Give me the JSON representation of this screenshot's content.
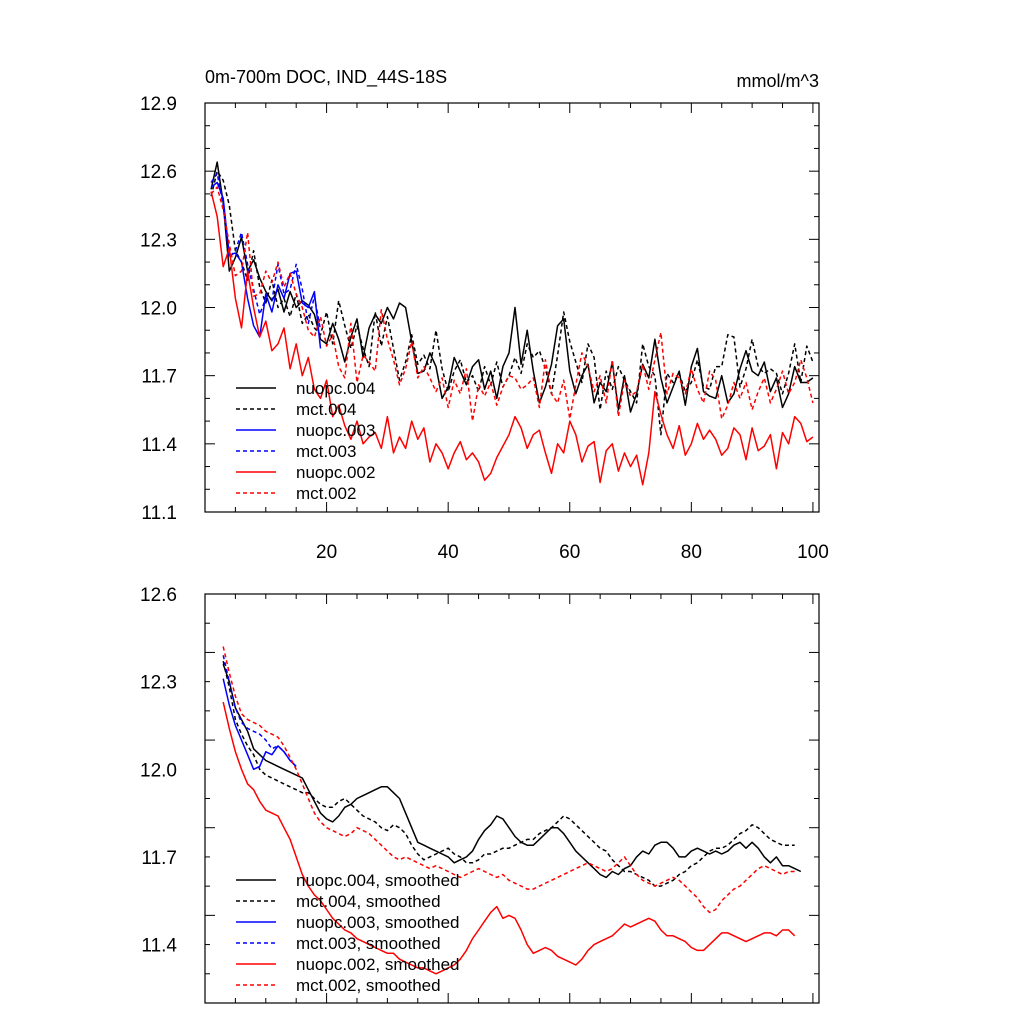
{
  "chart_data": [
    {
      "type": "line",
      "title": "0m-700m DOC, IND_44S-18S",
      "units": "mmol/m^3",
      "xlim": [
        0,
        101
      ],
      "ylim": [
        11.1,
        12.9
      ],
      "x_ticks": [
        "20",
        "40",
        "60",
        "80",
        "100"
      ],
      "y_ticks": [
        "11.1",
        "11.4",
        "11.7",
        "12.0",
        "12.3",
        "12.6",
        "12.9"
      ],
      "legend_position": "bottom-left",
      "series": [
        {
          "name": "nuopc.004",
          "color": "#000000",
          "dash": "solid",
          "x_start": 1,
          "values": [
            12.52,
            12.64,
            12.46,
            12.16,
            12.22,
            12.31,
            12.16,
            12.21,
            12.13,
            12.07,
            12.03,
            12.08,
            11.98,
            12.07,
            12.0,
            12.03,
            12.01,
            11.97,
            11.86,
            11.84,
            11.93,
            11.86,
            11.76,
            11.87,
            11.95,
            11.78,
            11.91,
            11.97,
            11.93,
            12.0,
            11.95,
            12.02,
            12.0,
            11.85,
            11.71,
            11.72,
            11.8,
            11.74,
            11.6,
            11.65,
            11.78,
            11.72,
            11.66,
            11.74,
            11.77,
            11.64,
            11.72,
            11.6,
            11.74,
            11.8,
            12.0,
            11.75,
            11.9,
            11.72,
            11.58,
            11.65,
            11.75,
            11.92,
            11.95,
            11.72,
            11.62,
            11.7,
            11.75,
            11.58,
            11.67,
            11.63,
            11.76,
            11.55,
            11.7,
            11.54,
            11.62,
            11.75,
            11.69,
            11.86,
            11.69,
            11.58,
            11.65,
            11.72,
            11.57,
            11.74,
            11.82,
            11.63,
            11.61,
            11.6,
            11.7,
            11.58,
            11.62,
            11.73,
            11.81,
            11.72,
            11.7,
            11.76,
            11.63,
            11.69,
            11.56,
            11.62,
            11.74,
            11.67,
            11.67,
            11.69
          ]
        },
        {
          "name": "mct.004",
          "color": "#000000",
          "dash": "dashed",
          "x_start": 1,
          "values": [
            12.49,
            12.6,
            12.56,
            12.45,
            12.25,
            12.2,
            12.12,
            12.25,
            12.09,
            12.02,
            12.12,
            12.0,
            12.04,
            11.96,
            12.06,
            11.93,
            11.97,
            11.91,
            11.88,
            11.98,
            11.84,
            12.03,
            11.92,
            11.82,
            11.92,
            11.82,
            11.74,
            11.98,
            11.83,
            11.96,
            11.82,
            11.68,
            11.76,
            11.88,
            11.75,
            11.79,
            11.73,
            11.9,
            11.73,
            11.63,
            11.72,
            11.77,
            11.67,
            11.7,
            11.63,
            11.74,
            11.66,
            11.76,
            11.65,
            11.7,
            11.78,
            11.71,
            11.84,
            11.78,
            11.81,
            11.73,
            11.62,
            11.79,
            11.98,
            11.85,
            11.76,
            11.67,
            11.84,
            11.78,
            11.55,
            11.72,
            11.64,
            11.74,
            11.68,
            11.63,
            11.58,
            11.84,
            11.74,
            11.7,
            11.44,
            11.71,
            11.67,
            11.71,
            11.63,
            11.67,
            11.77,
            11.65,
            11.64,
            11.74,
            11.74,
            11.88,
            11.87,
            11.65,
            11.73,
            11.86,
            11.74,
            11.71,
            11.73,
            11.71,
            11.62,
            11.71,
            11.84,
            11.67,
            11.83,
            11.76
          ]
        },
        {
          "name": "nuopc.003",
          "color": "#0000ff",
          "dash": "solid",
          "x_start": 1,
          "values": [
            12.53,
            12.55,
            12.48,
            12.23,
            12.24,
            12.2,
            12.04,
            11.92,
            11.87,
            12.06,
            11.98,
            12.1,
            12.04,
            12.15,
            12.16,
            12.02,
            12.0,
            12.07,
            11.82
          ]
        },
        {
          "name": "mct.003",
          "color": "#0000ff",
          "dash": "dashed",
          "x_start": 1,
          "values": [
            12.55,
            12.59,
            12.45,
            12.22,
            12.25,
            12.33,
            12.19,
            12.08,
            11.97,
            12.04,
            12.03,
            12.19,
            12.06,
            12.08,
            12.19,
            12.08,
            11.93,
            12.05,
            11.9
          ]
        },
        {
          "name": "nuopc.002",
          "color": "#ff0000",
          "dash": "solid",
          "x_start": 1,
          "values": [
            12.51,
            12.4,
            12.18,
            12.26,
            12.04,
            11.91,
            12.16,
            12.0,
            11.87,
            11.94,
            11.81,
            11.84,
            11.91,
            11.73,
            11.84,
            11.7,
            11.78,
            11.64,
            11.6,
            11.68,
            11.52,
            11.57,
            11.48,
            11.42,
            11.5,
            11.4,
            11.43,
            11.45,
            11.38,
            11.52,
            11.36,
            11.43,
            11.38,
            11.5,
            11.42,
            11.47,
            11.32,
            11.4,
            11.36,
            11.29,
            11.36,
            11.41,
            11.33,
            11.36,
            11.32,
            11.24,
            11.27,
            11.34,
            11.39,
            11.44,
            11.52,
            11.47,
            11.38,
            11.44,
            11.46,
            11.36,
            11.27,
            11.4,
            11.36,
            11.5,
            11.44,
            11.32,
            11.39,
            11.41,
            11.23,
            11.37,
            11.4,
            11.28,
            11.36,
            11.3,
            11.35,
            11.22,
            11.36,
            11.63,
            11.53,
            11.44,
            11.38,
            11.48,
            11.35,
            11.4,
            11.49,
            11.42,
            11.46,
            11.42,
            11.35,
            11.38,
            11.47,
            11.44,
            11.33,
            11.47,
            11.37,
            11.39,
            11.44,
            11.29,
            11.45,
            11.4,
            11.52,
            11.49,
            11.41,
            11.43
          ]
        },
        {
          "name": "mct.002",
          "color": "#ff0000",
          "dash": "dashed",
          "x_start": 1,
          "values": [
            12.5,
            12.53,
            12.43,
            12.28,
            12.14,
            12.16,
            12.33,
            12.05,
            12.06,
            12.16,
            12.11,
            12.2,
            12.09,
            12.15,
            12.06,
            12.0,
            11.9,
            11.87,
            11.96,
            11.83,
            11.88,
            11.74,
            11.69,
            11.93,
            11.67,
            11.79,
            11.76,
            11.72,
            11.99,
            11.86,
            11.77,
            11.66,
            11.73,
            11.85,
            11.69,
            11.74,
            11.69,
            11.63,
            11.69,
            11.56,
            11.68,
            11.62,
            11.73,
            11.5,
            11.66,
            11.61,
            11.67,
            11.57,
            11.65,
            11.7,
            11.69,
            11.64,
            11.66,
            11.69,
            11.56,
            11.77,
            11.62,
            11.58,
            11.68,
            11.51,
            11.66,
            11.8,
            11.74,
            11.63,
            11.7,
            11.58,
            11.77,
            11.52,
            11.68,
            11.61,
            11.63,
            11.75,
            11.64,
            11.77,
            11.89,
            11.62,
            11.71,
            11.69,
            11.62,
            11.73,
            11.64,
            11.58,
            11.72,
            11.68,
            11.51,
            11.57,
            11.67,
            11.6,
            11.67,
            11.55,
            11.63,
            11.69,
            11.58,
            11.64,
            11.72,
            11.62,
            11.67,
            11.77,
            11.69,
            11.58
          ]
        }
      ]
    },
    {
      "type": "line",
      "title": "",
      "xlim": [
        0,
        101
      ],
      "ylim": [
        11.2,
        12.6
      ],
      "y_ticks": [
        "11.4",
        "11.7",
        "12.0",
        "12.3",
        "12.6"
      ],
      "legend_position": "bottom-left",
      "series": [
        {
          "name": "nuopc.004, smoothed",
          "color": "#000000",
          "dash": "solid",
          "x_start": 3,
          "values": [
            12.36,
            12.3,
            12.21,
            12.17,
            12.13,
            12.07,
            12.05,
            12.03,
            12.02,
            12.01,
            12.0,
            11.99,
            11.98,
            11.97,
            11.93,
            11.89,
            11.85,
            11.83,
            11.82,
            11.84,
            11.87,
            11.88,
            11.9,
            11.91,
            11.92,
            11.93,
            11.94,
            11.94,
            11.92,
            11.9,
            11.85,
            11.8,
            11.75,
            11.74,
            11.73,
            11.72,
            11.71,
            11.7,
            11.68,
            11.69,
            11.7,
            11.72,
            11.76,
            11.79,
            11.81,
            11.84,
            11.83,
            11.8,
            11.77,
            11.75,
            11.74,
            11.74,
            11.76,
            11.78,
            11.8,
            11.8,
            11.78,
            11.75,
            11.72,
            11.7,
            11.68,
            11.66,
            11.64,
            11.63,
            11.65,
            11.64,
            11.66,
            11.67,
            11.7,
            11.72,
            11.71,
            11.74,
            11.75,
            11.75,
            11.73,
            11.7,
            11.7,
            11.72,
            11.73,
            11.72,
            11.71,
            11.72,
            11.71,
            11.72,
            11.74,
            11.75,
            11.73,
            11.75,
            11.73,
            11.7,
            11.68,
            11.7,
            11.67,
            11.67,
            11.66,
            11.65
          ]
        },
        {
          "name": "mct.004, smoothed",
          "color": "#000000",
          "dash": "dashed",
          "x_start": 3,
          "values": [
            12.37,
            12.28,
            12.17,
            12.12,
            12.08,
            12.05,
            12.0,
            11.98,
            11.97,
            11.96,
            11.95,
            11.94,
            11.93,
            11.92,
            11.92,
            11.9,
            11.88,
            11.87,
            11.87,
            11.89,
            11.9,
            11.88,
            11.86,
            11.84,
            11.83,
            11.82,
            11.8,
            11.79,
            11.81,
            11.8,
            11.78,
            11.74,
            11.71,
            11.69,
            11.7,
            11.71,
            11.72,
            11.73,
            11.71,
            11.7,
            11.68,
            11.68,
            11.69,
            11.71,
            11.71,
            11.72,
            11.73,
            11.73,
            11.74,
            11.75,
            11.76,
            11.76,
            11.78,
            11.79,
            11.8,
            11.82,
            11.84,
            11.83,
            11.81,
            11.79,
            11.77,
            11.75,
            11.73,
            11.72,
            11.69,
            11.67,
            11.65,
            11.65,
            11.64,
            11.63,
            11.62,
            11.6,
            11.6,
            11.61,
            11.62,
            11.64,
            11.65,
            11.67,
            11.68,
            11.7,
            11.72,
            11.73,
            11.73,
            11.74,
            11.76,
            11.78,
            11.79,
            11.81,
            11.8,
            11.78,
            11.76,
            11.75,
            11.74,
            11.74,
            11.74
          ]
        },
        {
          "name": "nuopc.003, smoothed",
          "color": "#0000ff",
          "dash": "solid",
          "x_start": 3,
          "values": [
            12.31,
            12.22,
            12.15,
            12.1,
            12.05,
            12.0,
            12.01,
            12.06,
            12.05,
            12.08,
            12.06,
            12.03,
            12.01
          ]
        },
        {
          "name": "mct.003, smoothed",
          "color": "#0000ff",
          "dash": "dashed",
          "x_start": 3,
          "values": [
            12.39,
            12.3,
            12.21,
            12.16,
            12.14,
            12.13,
            12.12,
            12.1,
            12.07,
            12.08,
            12.06,
            12.03,
            12.01
          ]
        },
        {
          "name": "nuopc.002, smoothed",
          "color": "#ff0000",
          "dash": "solid",
          "x_start": 3,
          "values": [
            12.23,
            12.14,
            12.06,
            12.0,
            11.95,
            11.93,
            11.89,
            11.86,
            11.85,
            11.84,
            11.8,
            11.76,
            11.7,
            11.64,
            11.6,
            11.57,
            11.55,
            11.52,
            11.49,
            11.47,
            11.45,
            11.44,
            11.42,
            11.41,
            11.4,
            11.39,
            11.38,
            11.37,
            11.37,
            11.35,
            11.34,
            11.33,
            11.32,
            11.32,
            11.31,
            11.3,
            11.31,
            11.32,
            11.33,
            11.35,
            11.38,
            11.42,
            11.45,
            11.48,
            11.51,
            11.53,
            11.49,
            11.5,
            11.49,
            11.45,
            11.4,
            11.37,
            11.38,
            11.39,
            11.38,
            11.36,
            11.35,
            11.34,
            11.33,
            11.35,
            11.38,
            11.4,
            11.41,
            11.42,
            11.43,
            11.45,
            11.47,
            11.46,
            11.47,
            11.48,
            11.49,
            11.48,
            11.45,
            11.43,
            11.43,
            11.42,
            11.41,
            11.39,
            11.38,
            11.38,
            11.4,
            11.42,
            11.44,
            11.44,
            11.43,
            11.42,
            11.41,
            11.42,
            11.43,
            11.44,
            11.44,
            11.43,
            11.45,
            11.45,
            11.43
          ]
        },
        {
          "name": "mct.002, smoothed",
          "color": "#ff0000",
          "dash": "dashed",
          "x_start": 3,
          "values": [
            12.42,
            12.33,
            12.25,
            12.19,
            12.17,
            12.16,
            12.15,
            12.13,
            12.12,
            12.11,
            12.08,
            12.04,
            12.0,
            11.95,
            11.9,
            11.85,
            11.82,
            11.8,
            11.79,
            11.78,
            11.77,
            11.78,
            11.8,
            11.79,
            11.78,
            11.76,
            11.74,
            11.72,
            11.7,
            11.69,
            11.7,
            11.69,
            11.68,
            11.67,
            11.66,
            11.67,
            11.66,
            11.65,
            11.64,
            11.63,
            11.64,
            11.65,
            11.66,
            11.65,
            11.64,
            11.63,
            11.64,
            11.62,
            11.61,
            11.6,
            11.59,
            11.59,
            11.6,
            11.61,
            11.62,
            11.63,
            11.64,
            11.65,
            11.66,
            11.67,
            11.68,
            11.67,
            11.66,
            11.65,
            11.66,
            11.68,
            11.7,
            11.67,
            11.64,
            11.62,
            11.61,
            11.6,
            11.61,
            11.62,
            11.63,
            11.62,
            11.6,
            11.58,
            11.56,
            11.53,
            11.51,
            11.52,
            11.55,
            11.57,
            11.59,
            11.6,
            11.62,
            11.64,
            11.66,
            11.67,
            11.66,
            11.65,
            11.64,
            11.65,
            11.65
          ]
        }
      ]
    }
  ]
}
